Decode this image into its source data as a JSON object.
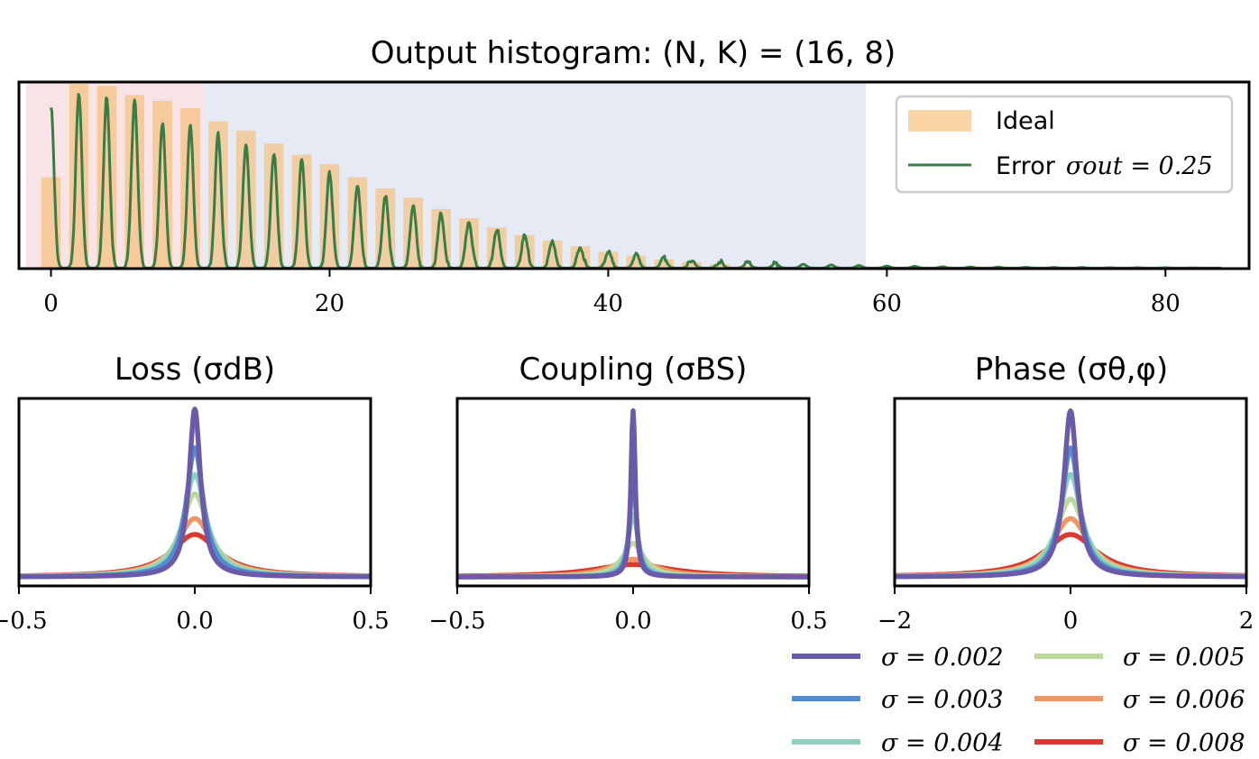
{
  "chart_data": [
    {
      "type": "histogram",
      "name": "output-histogram",
      "title": "Output histogram: (N, K) = (16, 8)",
      "xlim": [
        -2.3,
        86
      ],
      "ylim": [
        0,
        1.0
      ],
      "xticks": [
        0,
        20,
        40,
        60,
        80
      ],
      "xtick_labels": [
        "0",
        "20",
        "40",
        "60",
        "80"
      ],
      "shaded_regions": [
        {
          "x0": -1.8,
          "x1": 11,
          "color": "#f8e3e6"
        },
        {
          "x0": 11,
          "x1": 58.5,
          "color": "#e6eaf4"
        }
      ],
      "bars": {
        "name": "Ideal",
        "color": "#f6b96b",
        "centers": [
          0,
          2,
          4,
          6,
          8,
          10,
          12,
          14,
          16,
          18,
          20,
          22,
          24,
          26,
          28,
          30,
          32,
          34,
          36,
          38,
          40,
          42,
          44,
          46,
          48,
          50
        ],
        "values": [
          0.49,
          0.99,
          0.98,
          0.93,
          0.9,
          0.86,
          0.79,
          0.74,
          0.67,
          0.61,
          0.56,
          0.49,
          0.43,
          0.38,
          0.32,
          0.27,
          0.22,
          0.18,
          0.15,
          0.12,
          0.09,
          0.07,
          0.05,
          0.035,
          0.025,
          0.015
        ]
      },
      "line": {
        "name": "Error",
        "sigma_out": 0.25,
        "color": "#3a7d44",
        "peak_centers": [
          0,
          2,
          4,
          6,
          8,
          10,
          12,
          14,
          16,
          18,
          20,
          22,
          24,
          26,
          28,
          30,
          32,
          34,
          36,
          38,
          40,
          42,
          44,
          46,
          48,
          50,
          52,
          54,
          56,
          58,
          60,
          62,
          64,
          66,
          68,
          70,
          72,
          74,
          76,
          78,
          80,
          82
        ],
        "peak_values": [
          0.86,
          0.93,
          0.92,
          0.91,
          0.78,
          0.76,
          0.72,
          0.67,
          0.62,
          0.58,
          0.51,
          0.45,
          0.39,
          0.33,
          0.29,
          0.25,
          0.21,
          0.17,
          0.14,
          0.11,
          0.09,
          0.07,
          0.055,
          0.045,
          0.037,
          0.03,
          0.025,
          0.02,
          0.017,
          0.014,
          0.011,
          0.009,
          0.007,
          0.006,
          0.005,
          0.004,
          0.003,
          0.003,
          0.002,
          0.002,
          0.002,
          0.001
        ]
      },
      "legend": {
        "position": "upper right",
        "ideal_label": "Ideal",
        "error_label": "Error",
        "error_math": "σout = 0.25"
      }
    },
    {
      "type": "line",
      "name": "loss-panel",
      "title": "Loss (σdB)",
      "xlim": [
        -0.5,
        0.5
      ],
      "ylim": [
        0,
        1.0
      ],
      "xticks": [
        -0.5,
        0.0,
        0.5
      ],
      "xtick_labels": [
        "−0.5",
        "0.0",
        "0.5"
      ],
      "series": [
        {
          "sigma": 0.002,
          "peak": 0.95,
          "width": 0.022,
          "color": "#6b5aa8"
        },
        {
          "sigma": 0.003,
          "peak": 0.73,
          "width": 0.032,
          "color": "#4f8dd0"
        },
        {
          "sigma": 0.004,
          "peak": 0.58,
          "width": 0.042,
          "color": "#8ecfc0"
        },
        {
          "sigma": 0.005,
          "peak": 0.47,
          "width": 0.052,
          "color": "#bcd99a"
        },
        {
          "sigma": 0.006,
          "peak": 0.33,
          "width": 0.068,
          "color": "#ef9762"
        },
        {
          "sigma": 0.008,
          "peak": 0.24,
          "width": 0.09,
          "color": "#db3a30"
        }
      ]
    },
    {
      "type": "line",
      "name": "coupling-panel",
      "title": "Coupling (σBS)",
      "xlim": [
        -0.5,
        0.5
      ],
      "ylim": [
        0,
        1.0
      ],
      "xticks": [
        -0.5,
        0.0,
        0.5
      ],
      "xtick_labels": [
        "−0.5",
        "0.0",
        "0.5"
      ],
      "series": [
        {
          "sigma": 0.002,
          "peak": 0.94,
          "width": 0.008,
          "color": "#6b5aa8"
        },
        {
          "sigma": 0.003,
          "peak": 0.59,
          "width": 0.012,
          "color": "#4f8dd0"
        },
        {
          "sigma": 0.004,
          "peak": 0.35,
          "width": 0.02,
          "color": "#8ecfc0"
        },
        {
          "sigma": 0.005,
          "peak": 0.19,
          "width": 0.04,
          "color": "#bcd99a"
        },
        {
          "sigma": 0.006,
          "peak": 0.1,
          "width": 0.08,
          "color": "#ef9762"
        },
        {
          "sigma": 0.008,
          "peak": 0.07,
          "width": 0.15,
          "color": "#db3a30"
        }
      ]
    },
    {
      "type": "line",
      "name": "phase-panel",
      "title": "Phase (σθ,φ)",
      "xlim": [
        -2,
        2
      ],
      "ylim": [
        0,
        1.0
      ],
      "xticks": [
        -2,
        0,
        2
      ],
      "xtick_labels": [
        "−2",
        "0",
        "2"
      ],
      "series": [
        {
          "sigma": 0.002,
          "peak": 0.94,
          "width": 0.1,
          "color": "#6b5aa8"
        },
        {
          "sigma": 0.003,
          "peak": 0.73,
          "width": 0.13,
          "color": "#4f8dd0"
        },
        {
          "sigma": 0.004,
          "peak": 0.58,
          "width": 0.17,
          "color": "#8ecfc0"
        },
        {
          "sigma": 0.005,
          "peak": 0.44,
          "width": 0.22,
          "color": "#bcd99a"
        },
        {
          "sigma": 0.006,
          "peak": 0.33,
          "width": 0.28,
          "color": "#ef9762"
        },
        {
          "sigma": 0.008,
          "peak": 0.24,
          "width": 0.4,
          "color": "#db3a30"
        }
      ]
    }
  ],
  "bottom_legend": {
    "entries": [
      {
        "label": "σ = 0.002",
        "color": "#6b5aa8"
      },
      {
        "label": "σ = 0.003",
        "color": "#4f8dd0"
      },
      {
        "label": "σ = 0.004",
        "color": "#8ecfc0"
      },
      {
        "label": "σ = 0.005",
        "color": "#bcd99a"
      },
      {
        "label": "σ = 0.006",
        "color": "#ef9762"
      },
      {
        "label": "σ = 0.008",
        "color": "#db3a30"
      }
    ]
  }
}
